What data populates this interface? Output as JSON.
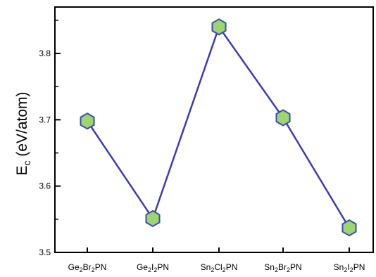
{
  "chart_data": {
    "type": "line",
    "title": "",
    "xlabel": "",
    "ylabel": {
      "main": "E",
      "subscript": "c",
      "unit": " (eV/atom)"
    },
    "categories": [
      {
        "base": "Ge",
        "s1": "2",
        "mid": "Br",
        "s2": "2",
        "tail": "PN"
      },
      {
        "base": "Ge",
        "s1": "2",
        "mid": "I",
        "s2": "2",
        "tail": "PN"
      },
      {
        "base": "Sn",
        "s1": "2",
        "mid": "Cl",
        "s2": "2",
        "tail": "PN"
      },
      {
        "base": "Sn",
        "s1": "2",
        "mid": "Br",
        "s2": "2",
        "tail": "PN"
      },
      {
        "base": "Sn",
        "s1": "2",
        "mid": "I",
        "s2": "2",
        "tail": "PN"
      }
    ],
    "series": [
      {
        "values": [
          3.698,
          3.551,
          3.84,
          3.703,
          3.537
        ]
      }
    ],
    "ylim": [
      3.5,
      3.87
    ],
    "yticks": [
      "3.5",
      "3.6",
      "3.7",
      "3.8"
    ],
    "grid": false,
    "line_color": "#3a3fa8",
    "marker_fill": "#9fd475",
    "marker_stroke": "#3a4fa8",
    "marker_shape": "hexagon"
  }
}
